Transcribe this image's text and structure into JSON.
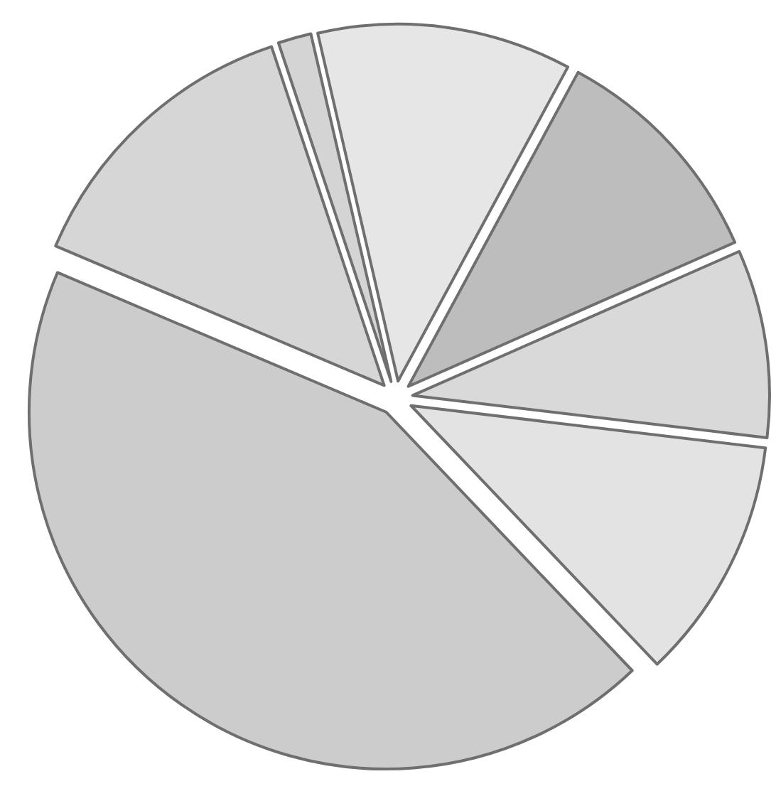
{
  "chart_data": {
    "type": "pie",
    "categories": [
      null,
      null,
      null,
      null,
      null,
      null,
      null
    ],
    "values": [
      1.5,
      11.5,
      10.5,
      8.5,
      11,
      43.5,
      13.5
    ],
    "colors": [
      "#d4d4d4",
      "#e6e6e6",
      "#bdbdbd",
      "#d9d9d9",
      "#e3e3e3",
      "#cccccc",
      "#d6d6d6"
    ]
  }
}
